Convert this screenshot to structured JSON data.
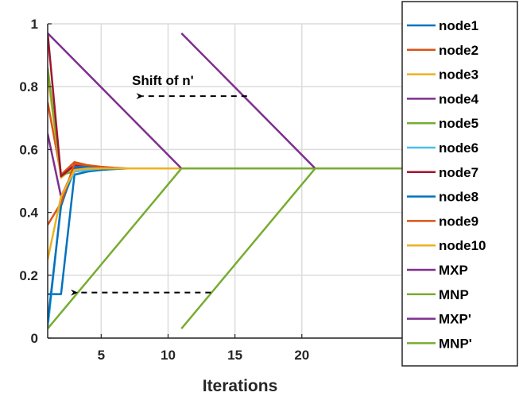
{
  "chart_data": {
    "type": "line",
    "xlabel": "Iterations",
    "ylabel": "",
    "xlim": [
      1,
      27.5
    ],
    "ylim": [
      0,
      1
    ],
    "xticks": [
      5,
      10,
      15,
      20
    ],
    "yticks": [
      0,
      0.2,
      0.4,
      0.6,
      0.8,
      1
    ],
    "xtick_labels": [
      "5",
      "10",
      "15",
      "20"
    ],
    "ytick_labels": [
      "0",
      "0.2",
      "0.4",
      "0.6",
      "0.8",
      "1"
    ],
    "grid": true,
    "legend_position": "right",
    "series": [
      {
        "name": "node1",
        "color": "#0072BD",
        "x": [
          1,
          2,
          3,
          4,
          5,
          6,
          7,
          30
        ],
        "y": [
          0.14,
          0.14,
          0.52,
          0.53,
          0.535,
          0.538,
          0.54,
          0.54
        ]
      },
      {
        "name": "node2",
        "color": "#D95319",
        "x": [
          1,
          2,
          3,
          4,
          5,
          6,
          7,
          30
        ],
        "y": [
          0.75,
          0.52,
          0.56,
          0.55,
          0.545,
          0.542,
          0.54,
          0.54
        ]
      },
      {
        "name": "node3",
        "color": "#EDB120",
        "x": [
          1,
          2,
          3,
          4,
          5,
          6,
          7,
          30
        ],
        "y": [
          0.84,
          0.51,
          0.545,
          0.54,
          0.54,
          0.54,
          0.54,
          0.54
        ]
      },
      {
        "name": "node4",
        "color": "#7E2F8E",
        "x": [
          1,
          2,
          3,
          4,
          5,
          6,
          7,
          30
        ],
        "y": [
          0.65,
          0.45,
          0.54,
          0.545,
          0.542,
          0.54,
          0.54,
          0.54
        ]
      },
      {
        "name": "node5",
        "color": "#77AC30",
        "x": [
          1,
          2,
          3,
          4,
          5,
          6,
          7,
          30
        ],
        "y": [
          0.86,
          0.52,
          0.53,
          0.535,
          0.54,
          0.54,
          0.54,
          0.54
        ]
      },
      {
        "name": "node6",
        "color": "#4DBEEE",
        "x": [
          1,
          2,
          3,
          4,
          5,
          6,
          7,
          30
        ],
        "y": [
          0.03,
          0.43,
          0.53,
          0.535,
          0.54,
          0.54,
          0.54,
          0.54
        ]
      },
      {
        "name": "node7",
        "color": "#A2142F",
        "x": [
          1,
          2,
          3,
          4,
          5,
          6,
          7,
          30
        ],
        "y": [
          0.97,
          0.515,
          0.55,
          0.545,
          0.54,
          0.54,
          0.54,
          0.54
        ]
      },
      {
        "name": "node8",
        "color": "#0072BD",
        "x": [
          1,
          2,
          3,
          4,
          5,
          6,
          7,
          30
        ],
        "y": [
          0.05,
          0.42,
          0.545,
          0.545,
          0.54,
          0.54,
          0.54,
          0.54
        ]
      },
      {
        "name": "node9",
        "color": "#D95319",
        "x": [
          1,
          2,
          3,
          4,
          5,
          6,
          7,
          30
        ],
        "y": [
          0.36,
          0.43,
          0.555,
          0.55,
          0.545,
          0.54,
          0.54,
          0.54
        ]
      },
      {
        "name": "node10",
        "color": "#EDB120",
        "x": [
          1,
          2,
          3,
          4,
          5,
          6,
          7,
          30
        ],
        "y": [
          0.25,
          0.45,
          0.535,
          0.54,
          0.54,
          0.54,
          0.54,
          0.54
        ]
      },
      {
        "name": "MXP",
        "color": "#7E2F8E",
        "x": [
          1,
          11,
          30
        ],
        "y": [
          0.97,
          0.54,
          0.54
        ]
      },
      {
        "name": "MNP",
        "color": "#77AC30",
        "x": [
          1,
          11,
          30
        ],
        "y": [
          0.03,
          0.54,
          0.54
        ]
      },
      {
        "name": "MXP'",
        "color": "#7E2F8E",
        "x": [
          11,
          21,
          30
        ],
        "y": [
          0.97,
          0.54,
          0.54
        ]
      },
      {
        "name": "MNP'",
        "color": "#77AC30",
        "x": [
          11,
          21,
          30
        ],
        "y": [
          0.03,
          0.54,
          0.54
        ]
      }
    ],
    "annotations": [
      {
        "text": "Shift of n'",
        "text_x": 7.3,
        "text_y": 0.805,
        "arrow_from": [
          15.9,
          0.77
        ],
        "arrow_to": [
          8.1,
          0.77
        ]
      },
      {
        "text": "",
        "arrow_from": [
          13.2,
          0.145
        ],
        "arrow_to": [
          3.2,
          0.145
        ]
      }
    ]
  }
}
